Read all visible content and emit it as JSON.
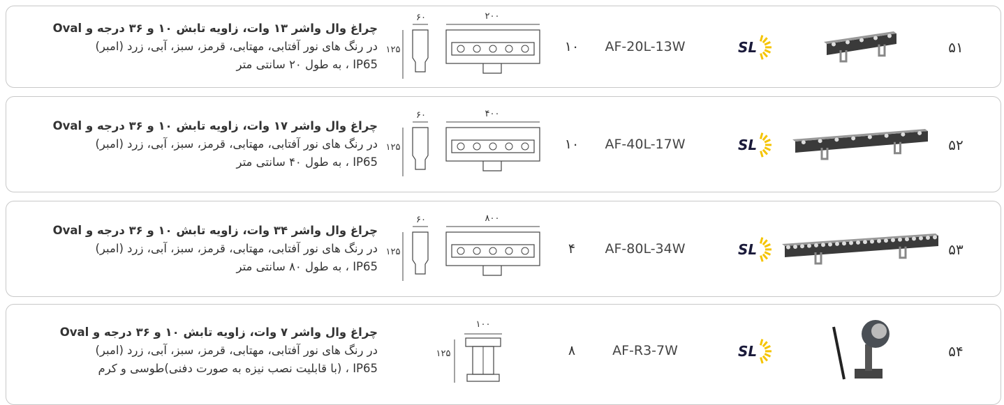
{
  "rows": [
    {
      "number": "۵۱",
      "logo": "SL",
      "model": "AF-20L-13W",
      "qty": "۱۰",
      "dims": {
        "width": "۲۰۰",
        "depth": "۶۰",
        "height": "۱۲۵"
      },
      "description": [
        "چراغ وال واشر ۱۳ وات، زاویه تابش ۱۰ و ۳۶ درجه و Oval",
        "در رنگ های نور آفتابی، مهتابی، قرمز، سبز، آبی، زرد (امبر)",
        "IP65 ، به طول ۲۰ سانتی متر"
      ]
    },
    {
      "number": "۵۲",
      "logo": "SL",
      "model": "AF-40L-17W",
      "qty": "۱۰",
      "dims": {
        "width": "۴۰۰",
        "depth": "۶۰",
        "height": "۱۲۵"
      },
      "description": [
        "چراغ وال واشر ۱۷ وات، زاویه تابش ۱۰ و ۳۶ درجه و Oval",
        "در رنگ های نور آفتابی، مهتابی، قرمز، سبز، آبی، زرد (امبر)",
        "IP65 ، به طول ۴۰ سانتی متر"
      ]
    },
    {
      "number": "۵۳",
      "logo": "SL",
      "model": "AF-80L-34W",
      "qty": "۴",
      "dims": {
        "width": "۸۰۰",
        "depth": "۶۰",
        "height": "۱۲۵"
      },
      "description": [
        "چراغ وال واشر ۳۴ وات، زاویه تابش ۱۰ و ۳۶ درجه و Oval",
        "در رنگ های نور آفتابی، مهتابی، قرمز، سبز، آبی، زرد (امبر)",
        "IP65 ، به طول ۸۰ سانتی متر"
      ]
    },
    {
      "number": "۵۴",
      "logo": "SL",
      "model": "AF-R3-7W",
      "qty": "۸",
      "dims": {
        "width": "۱۰۰",
        "height": "۱۲۵"
      },
      "description": [
        "چراغ وال واشر ۷ وات، زاویه تابش ۱۰ و ۳۶ درجه و Oval",
        "در رنگ های نور آفتابی، مهتابی، قرمز، سبز، آبی، زرد (امبر)",
        "IP65 ، (با قابلیت نصب نیزه به صورت دفنی)طوسی و کرم"
      ]
    }
  ]
}
